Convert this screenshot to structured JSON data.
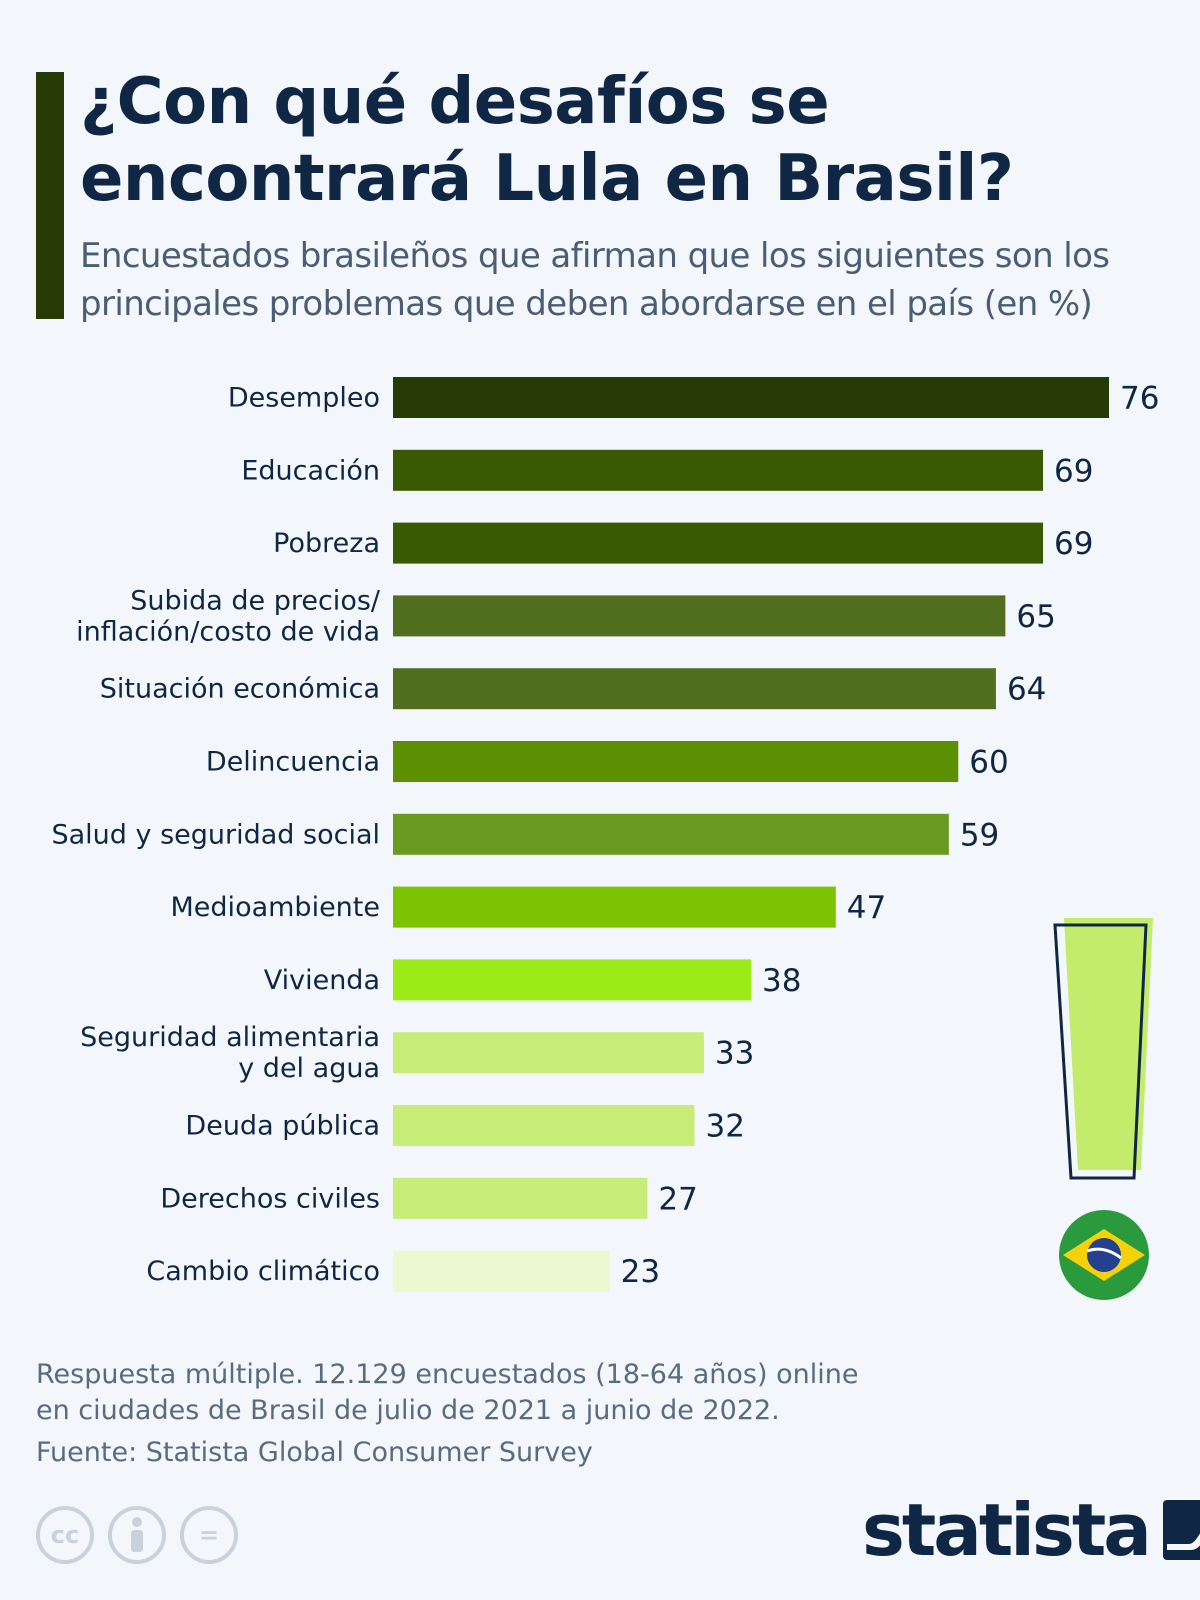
{
  "header": {
    "title": "¿Con qué desafíos se encontrará Lula en Brasil?",
    "subtitle": "Encuestados brasileños que afirman que los siguientes son los principales problemas que deben abordarse en el país (en %)"
  },
  "chart_data": {
    "type": "bar",
    "orientation": "horizontal",
    "categories": [
      [
        "Desempleo"
      ],
      [
        "Educación"
      ],
      [
        "Pobreza"
      ],
      [
        "Subida de precios/",
        "inflación/costo de vida"
      ],
      [
        "Situación económica"
      ],
      [
        "Delincuencia"
      ],
      [
        "Salud y seguridad social"
      ],
      [
        "Medioambiente"
      ],
      [
        "Vivienda"
      ],
      [
        "Seguridad alimentaria",
        "y del agua"
      ],
      [
        "Deuda pública"
      ],
      [
        "Derechos civiles"
      ],
      [
        "Cambio climático"
      ]
    ],
    "values": [
      76,
      69,
      69,
      65,
      64,
      60,
      59,
      47,
      38,
      33,
      32,
      27,
      23
    ],
    "colors": [
      "#253a05",
      "#395a02",
      "#395a02",
      "#526f20",
      "#526f20",
      "#5d8f03",
      "#6b9a20",
      "#7bc303",
      "#9dea19",
      "#c7ed78",
      "#c7ed78",
      "#c7ed78",
      "#ecf8cf"
    ],
    "data_labels": true,
    "xlim": [
      0,
      76
    ]
  },
  "footer": {
    "note_line1": "Respuesta múltiple. 12.129 encuestados (18-64 años) online",
    "note_line2": "en ciudades de Brasil de julio de 2021 a junio de 2022.",
    "source": "Fuente: Statista Global Consumer Survey",
    "license_icons": [
      "cc-icon",
      "by-icon",
      "nd-icon"
    ],
    "cc_text": "cc",
    "nd_text": "=",
    "logo_text": "statista"
  },
  "decorations": {
    "exclamation_fill": "#c3ec6c",
    "flag_colors": [
      "#2a9a3c",
      "#f5d10a",
      "#24408e"
    ]
  }
}
